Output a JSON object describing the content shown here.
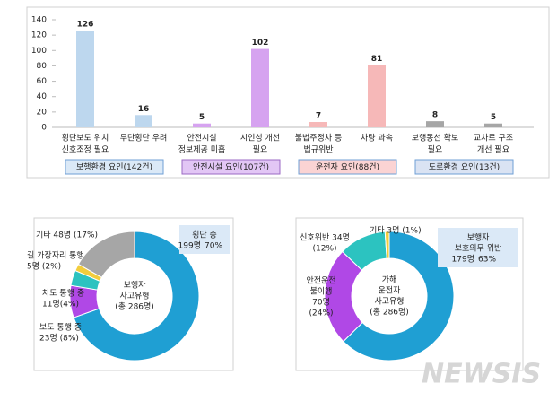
{
  "chart_data": [
    {
      "type": "bar",
      "ylim": [
        0,
        140
      ],
      "yticks": [
        0,
        20,
        40,
        60,
        80,
        100,
        120,
        140
      ],
      "groups": [
        {
          "label": "보행환경 요인(142건)",
          "color": "#bdd7ee",
          "box_color": "#dbe9f7",
          "box_border": "#6f9fd6",
          "categories": [
            [
              "횡단보도 위치",
              "신호조정 필요"
            ],
            [
              "무단횡단 우려"
            ]
          ],
          "values": [
            126,
            16
          ]
        },
        {
          "label": "안전시설 요인(107건)",
          "color": "#d6a3f0",
          "box_color": "#e2c6f5",
          "box_border": "#9b6ac4",
          "categories": [
            [
              "안전시설",
              "정보제공 미흡"
            ],
            [
              "시인성 개선",
              "필요"
            ]
          ],
          "values": [
            5,
            102
          ]
        },
        {
          "label": "운전자 요인(88건)",
          "color": "#f6b8b8",
          "box_color": "#fbd3d3",
          "box_border": "#6f9fd6",
          "categories": [
            [
              "불법주정차 등",
              "법규위반"
            ],
            [
              "차량 과속"
            ]
          ],
          "values": [
            7,
            81
          ]
        },
        {
          "label": "도로환경 요인(13건)",
          "color": "#a6a6a6",
          "box_color": "#dae3f3",
          "box_border": "#6f9fd6",
          "categories": [
            [
              "보행동선 확보",
              "필요"
            ],
            [
              "교차로 구조",
              "개선 필요"
            ]
          ],
          "values": [
            8,
            5
          ]
        }
      ]
    },
    {
      "type": "donut",
      "center": [
        "보행자",
        "사고유형",
        "(총 286명)"
      ],
      "segments": [
        {
          "value": 199,
          "color": "#1f9fd3",
          "label": [
            "횡단 중",
            "199명"
          ],
          "percent": "70%"
        },
        {
          "value": 23,
          "color": "#b048e6",
          "label": [
            "보도 통행 중",
            "23명 (8%)"
          ]
        },
        {
          "value": 11,
          "color": "#2cc3c0",
          "label": [
            "차도 통행 중",
            "11명(4%)"
          ]
        },
        {
          "value": 5,
          "color": "#f2cd3c",
          "label": [
            "길 가장자리 통행 중",
            "5명 (2%)"
          ]
        },
        {
          "value": 48,
          "color": "#a6a6a6",
          "label": [
            "기타 48명 (17%)"
          ]
        }
      ]
    },
    {
      "type": "donut",
      "center": [
        "가해",
        "운전자",
        "사고유형",
        "(총 286명)"
      ],
      "segments": [
        {
          "value": 179,
          "color": "#1f9fd3",
          "label": [
            "보행자",
            "보호의무 위반",
            "179명"
          ],
          "percent": "63%"
        },
        {
          "value": 70,
          "color": "#b048e6",
          "label": [
            "안전운전",
            "불이행",
            "70명",
            "(24%)"
          ]
        },
        {
          "value": 34,
          "color": "#2cc3c0",
          "label": [
            "신호위반 34명",
            "(12%)"
          ]
        },
        {
          "value": 3,
          "color": "#f2cd3c",
          "label": [
            "기타 3명 (1%)"
          ]
        }
      ]
    }
  ],
  "watermark": "NEWSIS"
}
